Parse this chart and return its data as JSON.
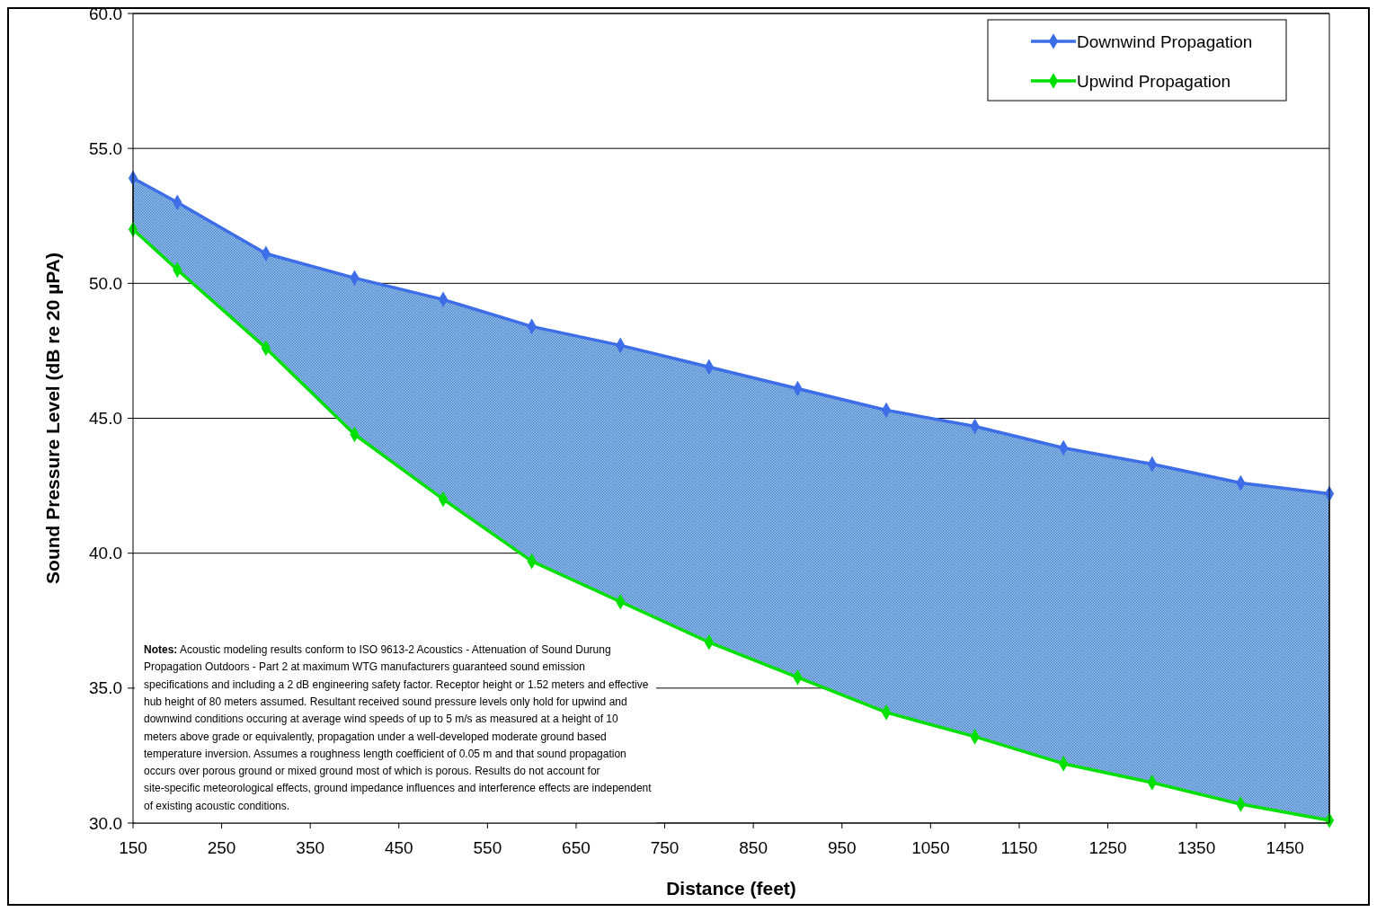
{
  "chart_data": {
    "type": "line",
    "xlabel": "Distance (feet)",
    "ylabel": "Sound Pressure Level (dB re 20 µPA)",
    "x": [
      150,
      200,
      300,
      400,
      500,
      600,
      700,
      800,
      900,
      1000,
      1100,
      1200,
      1300,
      1400,
      1500
    ],
    "series": [
      {
        "name": "Downwind Propagation",
        "color": "#3d6ee8",
        "values": [
          53.9,
          53.0,
          51.1,
          50.2,
          49.4,
          48.4,
          47.7,
          46.9,
          46.1,
          45.3,
          44.7,
          43.9,
          43.3,
          42.6,
          42.2
        ],
        "lower": [
          52.0,
          50.5,
          47.6,
          44.4,
          42.0,
          39.7,
          38.2,
          36.7,
          35.4,
          34.1,
          33.2,
          32.2,
          31.5,
          30.7,
          30.1
        ],
        "upper": [
          53.9,
          53.0,
          51.1,
          50.2,
          49.4,
          48.4,
          47.7,
          46.9,
          46.1,
          45.3,
          44.7,
          43.9,
          43.3,
          42.6,
          42.2
        ]
      },
      {
        "name": "Upwind Propagation",
        "color": "#00e000",
        "values": [
          52.0,
          50.5,
          47.6,
          44.4,
          42.0,
          39.7,
          38.2,
          36.7,
          35.4,
          34.1,
          33.2,
          32.2,
          31.5,
          30.7,
          30.1
        ]
      }
    ],
    "xlim": [
      150,
      1500
    ],
    "xticks": [
      150,
      250,
      350,
      450,
      550,
      650,
      750,
      850,
      950,
      1050,
      1150,
      1250,
      1350,
      1450
    ],
    "ylim": [
      30,
      60
    ],
    "yticks": [
      {
        "value": 30,
        "label": "30.0"
      },
      {
        "value": 35,
        "label": "35.0"
      },
      {
        "value": 40,
        "label": "40.0"
      },
      {
        "value": 45,
        "label": "45.0"
      },
      {
        "value": 50,
        "label": "50.0"
      },
      {
        "value": 55,
        "label": "55.0"
      },
      {
        "value": 60,
        "label": "60.0"
      }
    ],
    "grid": "y",
    "legend": "top right",
    "marker": "diamond",
    "line_style": "solid",
    "annotations": [
      "Notes: Acoustic modeling results conform to ISO 9613-2 Acoustics - Attenuation of Sound Durung Propagation Outdoors - Part 2  at maximum WTG manufacturers guaranteed sound emission specifications and including a 2 dB engineering safety factor.  Receptor height or 1.52 meters and effective hub height of 80 meters assumed. Resultant received sound pressure levels only hold for upwind and downwind conditions occuring at average wind speeds of up to 5 m/s as measured at a height of 10 meters above grade or equivalently, propagation under a well-developed moderate ground based temperature inversion.  Assumes a roughness length coefficient of 0.05 m and that sound propagation occurs over porous ground or mixed ground most of which is porous.  Results do not account for site-specific meteorological effects, ground impedance influences and interference effects are independent of existing acoustic conditions."
    ]
  }
}
